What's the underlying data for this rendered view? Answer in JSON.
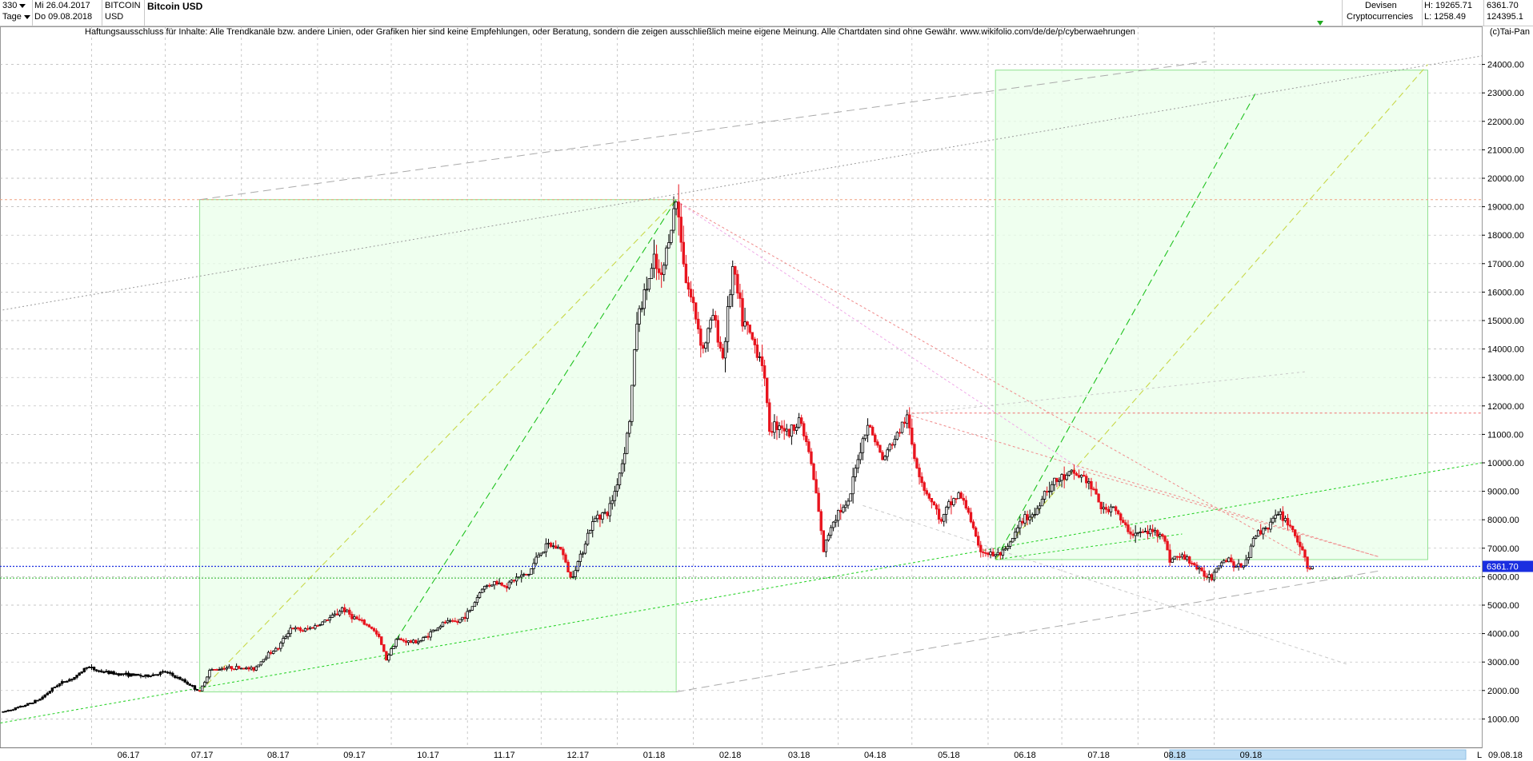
{
  "header": {
    "period": "330",
    "unit": "Tage",
    "date_from": "Mi 26.04.2017",
    "date_to": "Do 09.08.2018",
    "symbol": "BITCOIN",
    "currency": "USD",
    "title": "Bitcoin USD",
    "category1": "Devisen",
    "category2": "Cryptocurrencies",
    "high_label": "H: 19265.71",
    "low_label": "L: 1258.49",
    "last_value": "6361.70",
    "volume_value": "124395.1"
  },
  "disclaimer": "Haftungsausschluss für Inhalte: Alle Trendkanäle bzw. andere Linien, oder Grafiken hier sind keine Empfehlungen, oder Beratung, sondern die zeigen ausschließlich meine eigene Meinung. Alle Chartdaten sind ohne Gewähr.  www.wikifolio.com/de/de/p/cyberwaehrungen",
  "copyright": "(c)Tai-Pan",
  "colors": {
    "up": "#000000",
    "down": "#e8141e",
    "grid": "#b4b4b4",
    "box_fill": "#eaffea",
    "box_stroke": "#8ee28e",
    "price_line": "#1a2ee0",
    "support_line": "#22b022"
  },
  "chart_data": {
    "type": "candlestick",
    "title": "Bitcoin USD",
    "ylim": [
      0,
      25000
    ],
    "y_ticks": [
      1000,
      2000,
      3000,
      4000,
      5000,
      6000,
      7000,
      8000,
      9000,
      10000,
      11000,
      12000,
      13000,
      14000,
      15000,
      16000,
      17000,
      18000,
      19000,
      20000,
      21000,
      22000,
      23000,
      24000
    ],
    "y_tick_labels": [
      "1000.00",
      "2000.00",
      "3000.00",
      "4000.00",
      "5000.00",
      "6000.00",
      "7000.00",
      "8000.00",
      "9000.00",
      "10000.00",
      "11000.00",
      "12000.00",
      "13000.00",
      "14000.00",
      "15000.00",
      "16000.00",
      "17000.00",
      "18000.00",
      "19000.00",
      "20000.00",
      "21000.00",
      "22000.00",
      "23000.00",
      "24000.00"
    ],
    "x_labels": [
      "06.17",
      "07.17",
      "08.17",
      "09.17",
      "10.17",
      "11.17",
      "12.17",
      "01.18",
      "02.18",
      "03.18",
      "04.18",
      "05.18",
      "06.18",
      "07.18",
      "08.18",
      "09.18"
    ],
    "x_end_label": "09.08.18",
    "current_price": 6361.7,
    "current_price_label": "6361.70",
    "support_level": 5950,
    "resistance_level": 11750,
    "ath_level": 19250,
    "price_path": [
      [
        0,
        1250
      ],
      [
        8,
        1450
      ],
      [
        15,
        1700
      ],
      [
        22,
        2200
      ],
      [
        30,
        2500
      ],
      [
        34,
        2850
      ],
      [
        38,
        2700
      ],
      [
        45,
        2600
      ],
      [
        52,
        2550
      ],
      [
        58,
        2500
      ],
      [
        66,
        2650
      ],
      [
        72,
        2400
      ],
      [
        76,
        2200
      ],
      [
        80,
        1950
      ],
      [
        84,
        2700
      ],
      [
        90,
        2800
      ],
      [
        96,
        2800
      ],
      [
        102,
        2750
      ],
      [
        108,
        3300
      ],
      [
        112,
        3500
      ],
      [
        117,
        4200
      ],
      [
        122,
        4100
      ],
      [
        128,
        4300
      ],
      [
        132,
        4500
      ],
      [
        136,
        4700
      ],
      [
        138,
        4900
      ],
      [
        142,
        4600
      ],
      [
        146,
        4400
      ],
      [
        150,
        4200
      ],
      [
        153,
        3850
      ],
      [
        156,
        3100
      ],
      [
        160,
        3800
      ],
      [
        166,
        3700
      ],
      [
        170,
        3750
      ],
      [
        175,
        4100
      ],
      [
        180,
        4400
      ],
      [
        185,
        4400
      ],
      [
        190,
        4800
      ],
      [
        195,
        5600
      ],
      [
        200,
        5800
      ],
      [
        205,
        5700
      ],
      [
        209,
        5950
      ],
      [
        214,
        6100
      ],
      [
        218,
        6800
      ],
      [
        222,
        7100
      ],
      [
        227,
        7000
      ],
      [
        231,
        5950
      ],
      [
        235,
        6700
      ],
      [
        238,
        7500
      ],
      [
        242,
        8200
      ],
      [
        246,
        8200
      ],
      [
        249,
        9000
      ],
      [
        252,
        10000
      ],
      [
        255,
        11500
      ],
      [
        258,
        15000
      ],
      [
        262,
        16200
      ],
      [
        265,
        17000
      ],
      [
        268,
        16400
      ],
      [
        271,
        18000
      ],
      [
        274,
        19200
      ],
      [
        276,
        18000
      ],
      [
        278,
        16400
      ],
      [
        281,
        15500
      ],
      [
        285,
        14000
      ],
      [
        289,
        15200
      ],
      [
        293,
        13700
      ],
      [
        297,
        16800
      ],
      [
        301,
        15000
      ],
      [
        305,
        14300
      ],
      [
        309,
        13600
      ],
      [
        312,
        11200
      ],
      [
        316,
        11400
      ],
      [
        320,
        11000
      ],
      [
        324,
        11600
      ],
      [
        328,
        10400
      ],
      [
        331,
        8900
      ],
      [
        334,
        6900
      ],
      [
        337,
        7800
      ],
      [
        340,
        8300
      ],
      [
        344,
        8500
      ],
      [
        348,
        10200
      ],
      [
        352,
        11400
      ],
      [
        355,
        10800
      ],
      [
        358,
        10100
      ],
      [
        362,
        10700
      ],
      [
        366,
        11300
      ],
      [
        368,
        11600
      ],
      [
        371,
        10200
      ],
      [
        375,
        9100
      ],
      [
        379,
        8500
      ],
      [
        382,
        7900
      ],
      [
        385,
        8500
      ],
      [
        389,
        8900
      ],
      [
        393,
        8300
      ],
      [
        397,
        7000
      ],
      [
        401,
        6800
      ],
      [
        404,
        6750
      ],
      [
        408,
        6850
      ],
      [
        412,
        7500
      ],
      [
        416,
        8100
      ],
      [
        420,
        8200
      ],
      [
        424,
        9000
      ],
      [
        428,
        9300
      ],
      [
        432,
        9500
      ],
      [
        436,
        9600
      ],
      [
        440,
        9500
      ],
      [
        444,
        9000
      ],
      [
        448,
        8300
      ],
      [
        452,
        8500
      ],
      [
        456,
        7800
      ],
      [
        460,
        7500
      ],
      [
        464,
        7550
      ],
      [
        468,
        7600
      ],
      [
        472,
        7500
      ],
      [
        475,
        6600
      ],
      [
        478,
        6700
      ],
      [
        482,
        6650
      ],
      [
        485,
        6400
      ],
      [
        488,
        6100
      ],
      [
        492,
        6000
      ],
      [
        495,
        6500
      ],
      [
        499,
        6650
      ],
      [
        502,
        6300
      ],
      [
        506,
        6500
      ],
      [
        509,
        7400
      ],
      [
        513,
        7650
      ],
      [
        517,
        8000
      ],
      [
        520,
        8200
      ],
      [
        524,
        7800
      ],
      [
        528,
        7100
      ],
      [
        531,
        6300
      ],
      [
        533,
        6361.7
      ]
    ],
    "annotations": [
      {
        "name": "box-1",
        "from": [
          80,
          1950
        ],
        "to": [
          274,
          19250
        ]
      },
      {
        "name": "box-2",
        "from": [
          404,
          6600
        ],
        "to": [
          580,
          23800
        ]
      },
      {
        "name": "support-trend",
        "from": [
          -5,
          800
        ],
        "to": [
          602,
          10000
        ]
      },
      {
        "name": "upper-channel",
        "from": [
          -5,
          15300
        ],
        "to": [
          602,
          24300
        ]
      },
      {
        "name": "resistance-line",
        "from": [
          274,
          19200
        ],
        "to": [
          530,
          6650
        ]
      },
      {
        "name": "fan-1a",
        "from": [
          80,
          1950
        ],
        "to": [
          274,
          19250
        ]
      },
      {
        "name": "fan-1b",
        "from": [
          155,
          3100
        ],
        "to": [
          274,
          19250
        ]
      },
      {
        "name": "fan-2a",
        "from": [
          404,
          6600
        ],
        "to": [
          510,
          23000
        ]
      },
      {
        "name": "fan-2b",
        "from": [
          404,
          6600
        ],
        "to": [
          580,
          24000
        ]
      }
    ]
  }
}
